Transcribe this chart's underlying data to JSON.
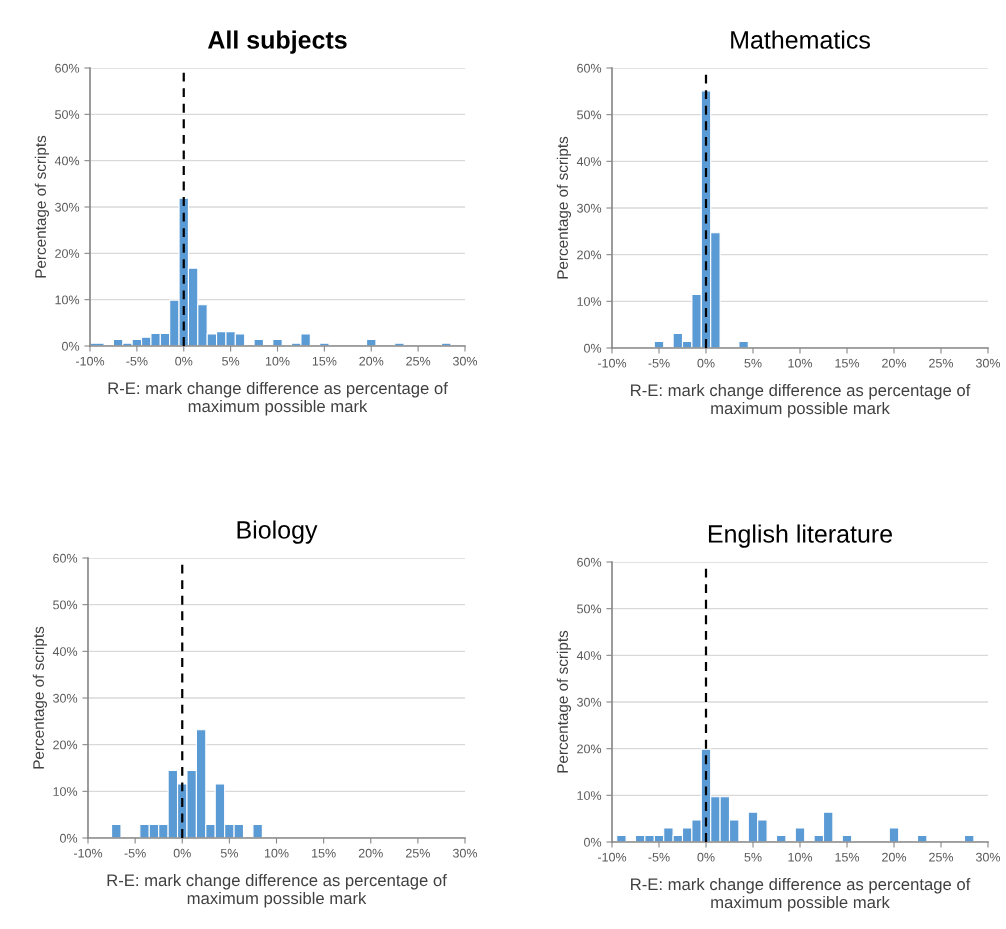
{
  "chart_data": [
    {
      "type": "histogram",
      "title": "All subjects",
      "xlabel": "R-E: mark change difference as percentage of\nmaximum possible mark",
      "ylabel": "Percentage of scripts",
      "color": "#5b9bd5",
      "bins": [
        -10,
        -8.5,
        -7.5,
        -6.5,
        -5.5,
        -4.5,
        -3.5,
        -2.5,
        -1.5,
        -0.5,
        0.5,
        1.5,
        2.5,
        3.5,
        4.5,
        5.5,
        6.5,
        7.5,
        8.5,
        9.5,
        10.5,
        11.5,
        12.5,
        13.5,
        14.5,
        15.5,
        19.5,
        20.5,
        22.5,
        23.5,
        27.5,
        28.5
      ],
      "values": [
        0.6,
        0,
        1.4,
        0.6,
        1.4,
        1.9,
        2.7,
        2.7,
        9.9,
        31.9,
        16.8,
        8.9,
        2.6,
        3.1,
        3.1,
        2.6,
        0,
        1.4,
        0,
        1.4,
        0,
        0.6,
        2.6,
        0,
        0.6,
        0,
        1.4,
        0,
        0.6,
        0,
        0.6
      ],
      "xlim": [
        -10,
        30
      ],
      "xticks": [
        {
          "value": -10,
          "label": "-10%"
        },
        {
          "value": -5,
          "label": "-5%"
        },
        {
          "value": 0,
          "label": "0%"
        },
        {
          "value": 5,
          "label": "5%"
        },
        {
          "value": 10,
          "label": "10%"
        },
        {
          "value": 15,
          "label": "15%"
        },
        {
          "value": 20,
          "label": "20%"
        },
        {
          "value": 25,
          "label": "25%"
        },
        {
          "value": 30,
          "label": "30%"
        }
      ],
      "ylim": [
        0,
        60
      ],
      "yticks": [
        {
          "value": 0,
          "label": "0%"
        },
        {
          "value": 10,
          "label": "10%"
        },
        {
          "value": 20,
          "label": "20%"
        },
        {
          "value": 30,
          "label": "30%"
        },
        {
          "value": 40,
          "label": "40%"
        },
        {
          "value": 50,
          "label": "50%"
        },
        {
          "value": 60,
          "label": "60%"
        }
      ],
      "grid": "y",
      "ref_lines": [
        {
          "axis": "x",
          "value": 0,
          "color": "#000000",
          "line_style": "dashed"
        }
      ]
    },
    {
      "type": "histogram",
      "title": "Mathematics",
      "xlabel": "R-E: mark change difference as percentage of\nmaximum possible mark",
      "ylabel": "Percentage of scripts",
      "color": "#5b9bd5",
      "bins": [
        -5.5,
        -4.5,
        -3.5,
        -2.5,
        -1.5,
        -0.5,
        0.5,
        1.5,
        3.5,
        4.5
      ],
      "values": [
        1.4,
        0,
        3.1,
        1.4,
        11.5,
        55.1,
        24.7,
        0,
        1.4
      ],
      "xlim": [
        -10,
        30
      ],
      "xticks": [
        {
          "value": -10,
          "label": "-10%"
        },
        {
          "value": -5,
          "label": "-5%"
        },
        {
          "value": 0,
          "label": "0%"
        },
        {
          "value": 5,
          "label": "5%"
        },
        {
          "value": 10,
          "label": "10%"
        },
        {
          "value": 15,
          "label": "15%"
        },
        {
          "value": 20,
          "label": "20%"
        },
        {
          "value": 25,
          "label": "25%"
        },
        {
          "value": 30,
          "label": "30%"
        }
      ],
      "ylim": [
        0,
        60
      ],
      "yticks": [
        {
          "value": 0,
          "label": "0%"
        },
        {
          "value": 10,
          "label": "10%"
        },
        {
          "value": 20,
          "label": "20%"
        },
        {
          "value": 30,
          "label": "30%"
        },
        {
          "value": 40,
          "label": "40%"
        },
        {
          "value": 50,
          "label": "50%"
        },
        {
          "value": 60,
          "label": "60%"
        }
      ],
      "grid": "y",
      "ref_lines": [
        {
          "axis": "x",
          "value": 0,
          "color": "#000000",
          "line_style": "dashed"
        }
      ]
    },
    {
      "type": "histogram",
      "title": "Biology",
      "xlabel": "R-E: mark change difference as percentage of\nmaximum possible mark",
      "ylabel": "Percentage of scripts",
      "color": "#5b9bd5",
      "bins": [
        -7.5,
        -6.5,
        -4.5,
        -3.5,
        -2.5,
        -1.5,
        -0.5,
        0.5,
        1.5,
        2.5,
        3.5,
        4.5,
        5.5,
        6.5,
        7.5,
        8.5
      ],
      "values": [
        2.9,
        0,
        2.9,
        2.9,
        2.9,
        14.5,
        11.6,
        14.5,
        23.2,
        2.9,
        11.6,
        2.9,
        2.9,
        0,
        2.9
      ],
      "xlim": [
        -10,
        30
      ],
      "xticks": [
        {
          "value": -10,
          "label": "-10%"
        },
        {
          "value": -5,
          "label": "-5%"
        },
        {
          "value": 0,
          "label": "0%"
        },
        {
          "value": 5,
          "label": "5%"
        },
        {
          "value": 10,
          "label": "10%"
        },
        {
          "value": 15,
          "label": "15%"
        },
        {
          "value": 20,
          "label": "20%"
        },
        {
          "value": 25,
          "label": "25%"
        },
        {
          "value": 30,
          "label": "30%"
        }
      ],
      "ylim": [
        0,
        60
      ],
      "yticks": [
        {
          "value": 0,
          "label": "0%"
        },
        {
          "value": 10,
          "label": "10%"
        },
        {
          "value": 20,
          "label": "20%"
        },
        {
          "value": 30,
          "label": "30%"
        },
        {
          "value": 40,
          "label": "40%"
        },
        {
          "value": 50,
          "label": "50%"
        },
        {
          "value": 60,
          "label": "60%"
        }
      ],
      "grid": "y",
      "ref_lines": [
        {
          "axis": "x",
          "value": 0,
          "color": "#000000",
          "line_style": "dashed"
        }
      ]
    },
    {
      "type": "histogram",
      "title": "English literature",
      "xlabel": "R-E: mark change difference as percentage of\nmaximum possible mark",
      "ylabel": "Percentage of scripts",
      "color": "#5b9bd5",
      "bins": [
        -9.5,
        -8.5,
        -7.5,
        -6.5,
        -5.5,
        -4.5,
        -3.5,
        -2.5,
        -1.5,
        -0.5,
        0.5,
        1.5,
        2.5,
        3.5,
        4.5,
        5.5,
        6.5,
        7.5,
        8.5,
        9.5,
        10.5,
        11.5,
        12.5,
        13.5,
        14.5,
        15.5,
        19.5,
        20.5,
        22.5,
        23.5,
        27.5,
        28.5
      ],
      "values": [
        1.4,
        0,
        1.4,
        1.4,
        1.4,
        3.0,
        1.4,
        3.0,
        4.7,
        19.9,
        9.7,
        9.7,
        4.7,
        0,
        6.4,
        4.7,
        0,
        1.4,
        0,
        3.0,
        0,
        1.4,
        6.4,
        0,
        1.4,
        0,
        3.0,
        0,
        1.4,
        0,
        1.4
      ],
      "xlim": [
        -10,
        30
      ],
      "xticks": [
        {
          "value": -10,
          "label": "-10%"
        },
        {
          "value": -5,
          "label": "-5%"
        },
        {
          "value": 0,
          "label": "0%"
        },
        {
          "value": 5,
          "label": "5%"
        },
        {
          "value": 10,
          "label": "10%"
        },
        {
          "value": 15,
          "label": "15%"
        },
        {
          "value": 20,
          "label": "20%"
        },
        {
          "value": 25,
          "label": "25%"
        },
        {
          "value": 30,
          "label": "30%"
        }
      ],
      "ylim": [
        0,
        60
      ],
      "yticks": [
        {
          "value": 0,
          "label": "0%"
        },
        {
          "value": 10,
          "label": "10%"
        },
        {
          "value": 20,
          "label": "20%"
        },
        {
          "value": 30,
          "label": "30%"
        },
        {
          "value": 40,
          "label": "40%"
        },
        {
          "value": 50,
          "label": "50%"
        },
        {
          "value": 60,
          "label": "60%"
        }
      ],
      "grid": "y",
      "ref_lines": [
        {
          "axis": "x",
          "value": 0,
          "color": "#000000",
          "line_style": "dashed"
        }
      ]
    }
  ]
}
